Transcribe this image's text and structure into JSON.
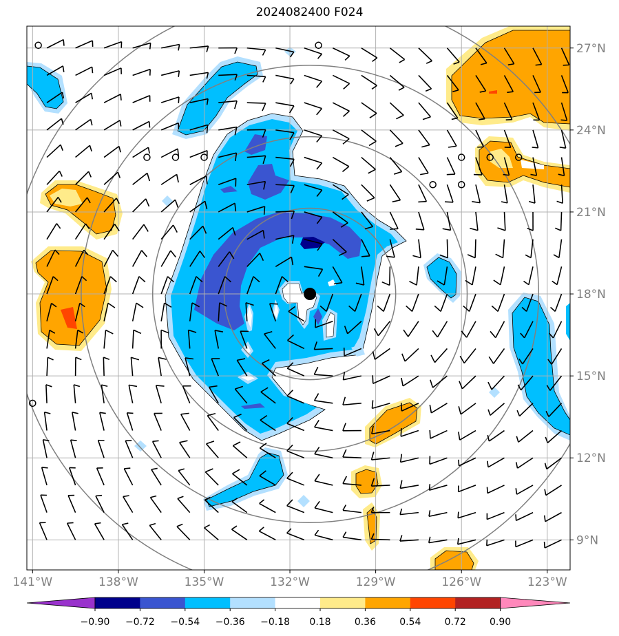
{
  "title": "2024082400 F024",
  "map": {
    "lon_range": [
      -141.2,
      -122.2
    ],
    "lat_range": [
      7.9,
      27.8
    ],
    "lon_ticks": [
      "141°W",
      "138°W",
      "135°W",
      "132°W",
      "129°W",
      "126°W",
      "123°W"
    ],
    "lat_ticks": [
      "27°N",
      "24°N",
      "21°N",
      "18°N",
      "15°N",
      "12°N",
      "9°N"
    ],
    "lon_tick_values": [
      -141,
      -138,
      -135,
      -132,
      -129,
      -126,
      -123
    ],
    "lat_tick_values": [
      27,
      24,
      21,
      18,
      15,
      12,
      9
    ],
    "storm_center": {
      "lon": -131.3,
      "lat": 18.0
    },
    "range_rings_deg": [
      3,
      5.5,
      8,
      10.5
    ],
    "ring_color": "#808080",
    "grid_color": "#b0b0b0"
  },
  "colorbar": {
    "labels": [
      "−0.90",
      "−0.72",
      "−0.54",
      "−0.36",
      "−0.18",
      "0.18",
      "0.36",
      "0.54",
      "0.72",
      "0.90"
    ],
    "colors": [
      "#9932cc",
      "#00008b",
      "#3a55d0",
      "#00bfff",
      "#b3e0ff",
      "#ffffff",
      "#ffeb8a",
      "#ffa500",
      "#ff4500",
      "#b22222",
      "#ff88bb"
    ]
  },
  "palette": {
    "light_blue": "#b3e0ff",
    "blue": "#00bfff",
    "mid_blue": "#3a55d0",
    "dark_blue": "#00008b",
    "yellow": "#ffeb8a",
    "orange": "#ffa500",
    "red": "#ff4500"
  }
}
